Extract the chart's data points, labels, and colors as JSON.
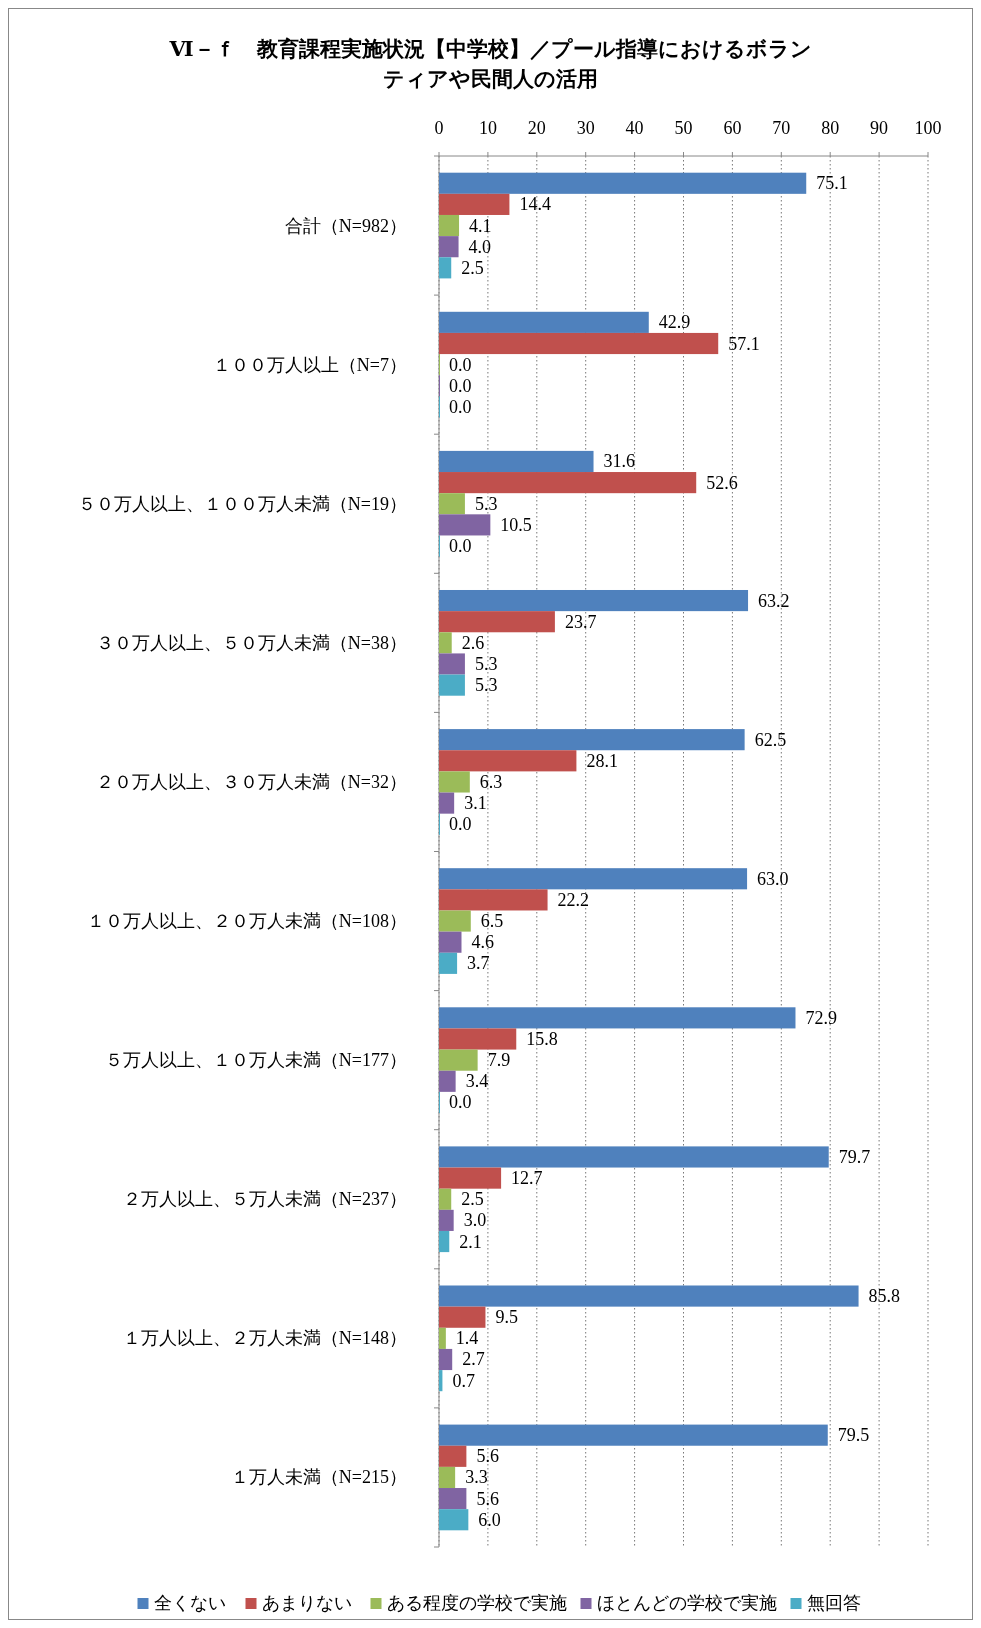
{
  "chart_data": {
    "type": "bar",
    "orientation": "horizontal",
    "title": "Ⅵ－ｆ　教育課程実施状況【中学校】／プール指導におけるボランティアや民間人の活用",
    "categories": [
      "合計（N=982）",
      "１００万人以上（N=7）",
      "５０万人以上、１００万人未満（N=19）",
      "３０万人以上、５０万人未満（N=38）",
      "２０万人以上、３０万人未満（N=32）",
      "１０万人以上、２０万人未満（N=108）",
      "５万人以上、１０万人未満（N=177）",
      "２万人以上、５万人未満（N=237）",
      "１万人以上、２万人未満（N=148）",
      "１万人未満（N=215）"
    ],
    "series": [
      {
        "name": "全くない",
        "color": "#4f81bd",
        "values": [
          75.1,
          42.9,
          31.6,
          63.2,
          62.5,
          63.0,
          72.9,
          79.7,
          85.8,
          79.5
        ],
        "value_labels": [
          "75.1",
          "42.9",
          "31.6",
          "63.2",
          "62.5",
          "63.0",
          "72.9",
          "79.7",
          "85.8",
          "79.5"
        ]
      },
      {
        "name": "あまりない",
        "color": "#c0504d",
        "values": [
          14.4,
          57.1,
          52.6,
          23.7,
          28.1,
          22.2,
          15.8,
          12.7,
          9.5,
          5.6
        ],
        "value_labels": [
          "14.4",
          "57.1",
          "52.6",
          "23.7",
          "28.1",
          "22.2",
          "15.8",
          "12.7",
          "9.5",
          "5.6"
        ]
      },
      {
        "name": "ある程度の学校で実施",
        "color": "#9bbb59",
        "values": [
          4.1,
          0.0,
          5.3,
          2.6,
          6.3,
          6.5,
          7.9,
          2.5,
          1.4,
          3.3
        ],
        "value_labels": [
          "4.1",
          "0.0",
          "5.3",
          "2.6",
          "6.3",
          "6.5",
          "7.9",
          "2.5",
          "1.4",
          "3.3"
        ]
      },
      {
        "name": "ほとんどの学校で実施",
        "color": "#8064a2",
        "values": [
          4.0,
          0.0,
          10.5,
          5.3,
          3.1,
          4.6,
          3.4,
          3.0,
          2.7,
          5.6
        ],
        "value_labels": [
          "4.0",
          "0.0",
          "10.5",
          "5.3",
          "3.1",
          "4.6",
          "3.4",
          "3.0",
          "2.7",
          "5.6"
        ]
      },
      {
        "name": "無回答",
        "color": "#4bacc6",
        "values": [
          2.5,
          0.0,
          0.0,
          5.3,
          0.0,
          3.7,
          0.0,
          2.1,
          0.7,
          6.0
        ],
        "value_labels": [
          "2.5",
          "0.0",
          "0.0",
          "5.3",
          "0.0",
          "3.7",
          "0.0",
          "2.1",
          "0.7",
          "6.0"
        ]
      }
    ],
    "xlim": [
      0,
      100
    ],
    "xticks": [
      0,
      10,
      20,
      30,
      40,
      50,
      60,
      70,
      80,
      90,
      100
    ],
    "grid": "x",
    "legend": "bottom"
  }
}
